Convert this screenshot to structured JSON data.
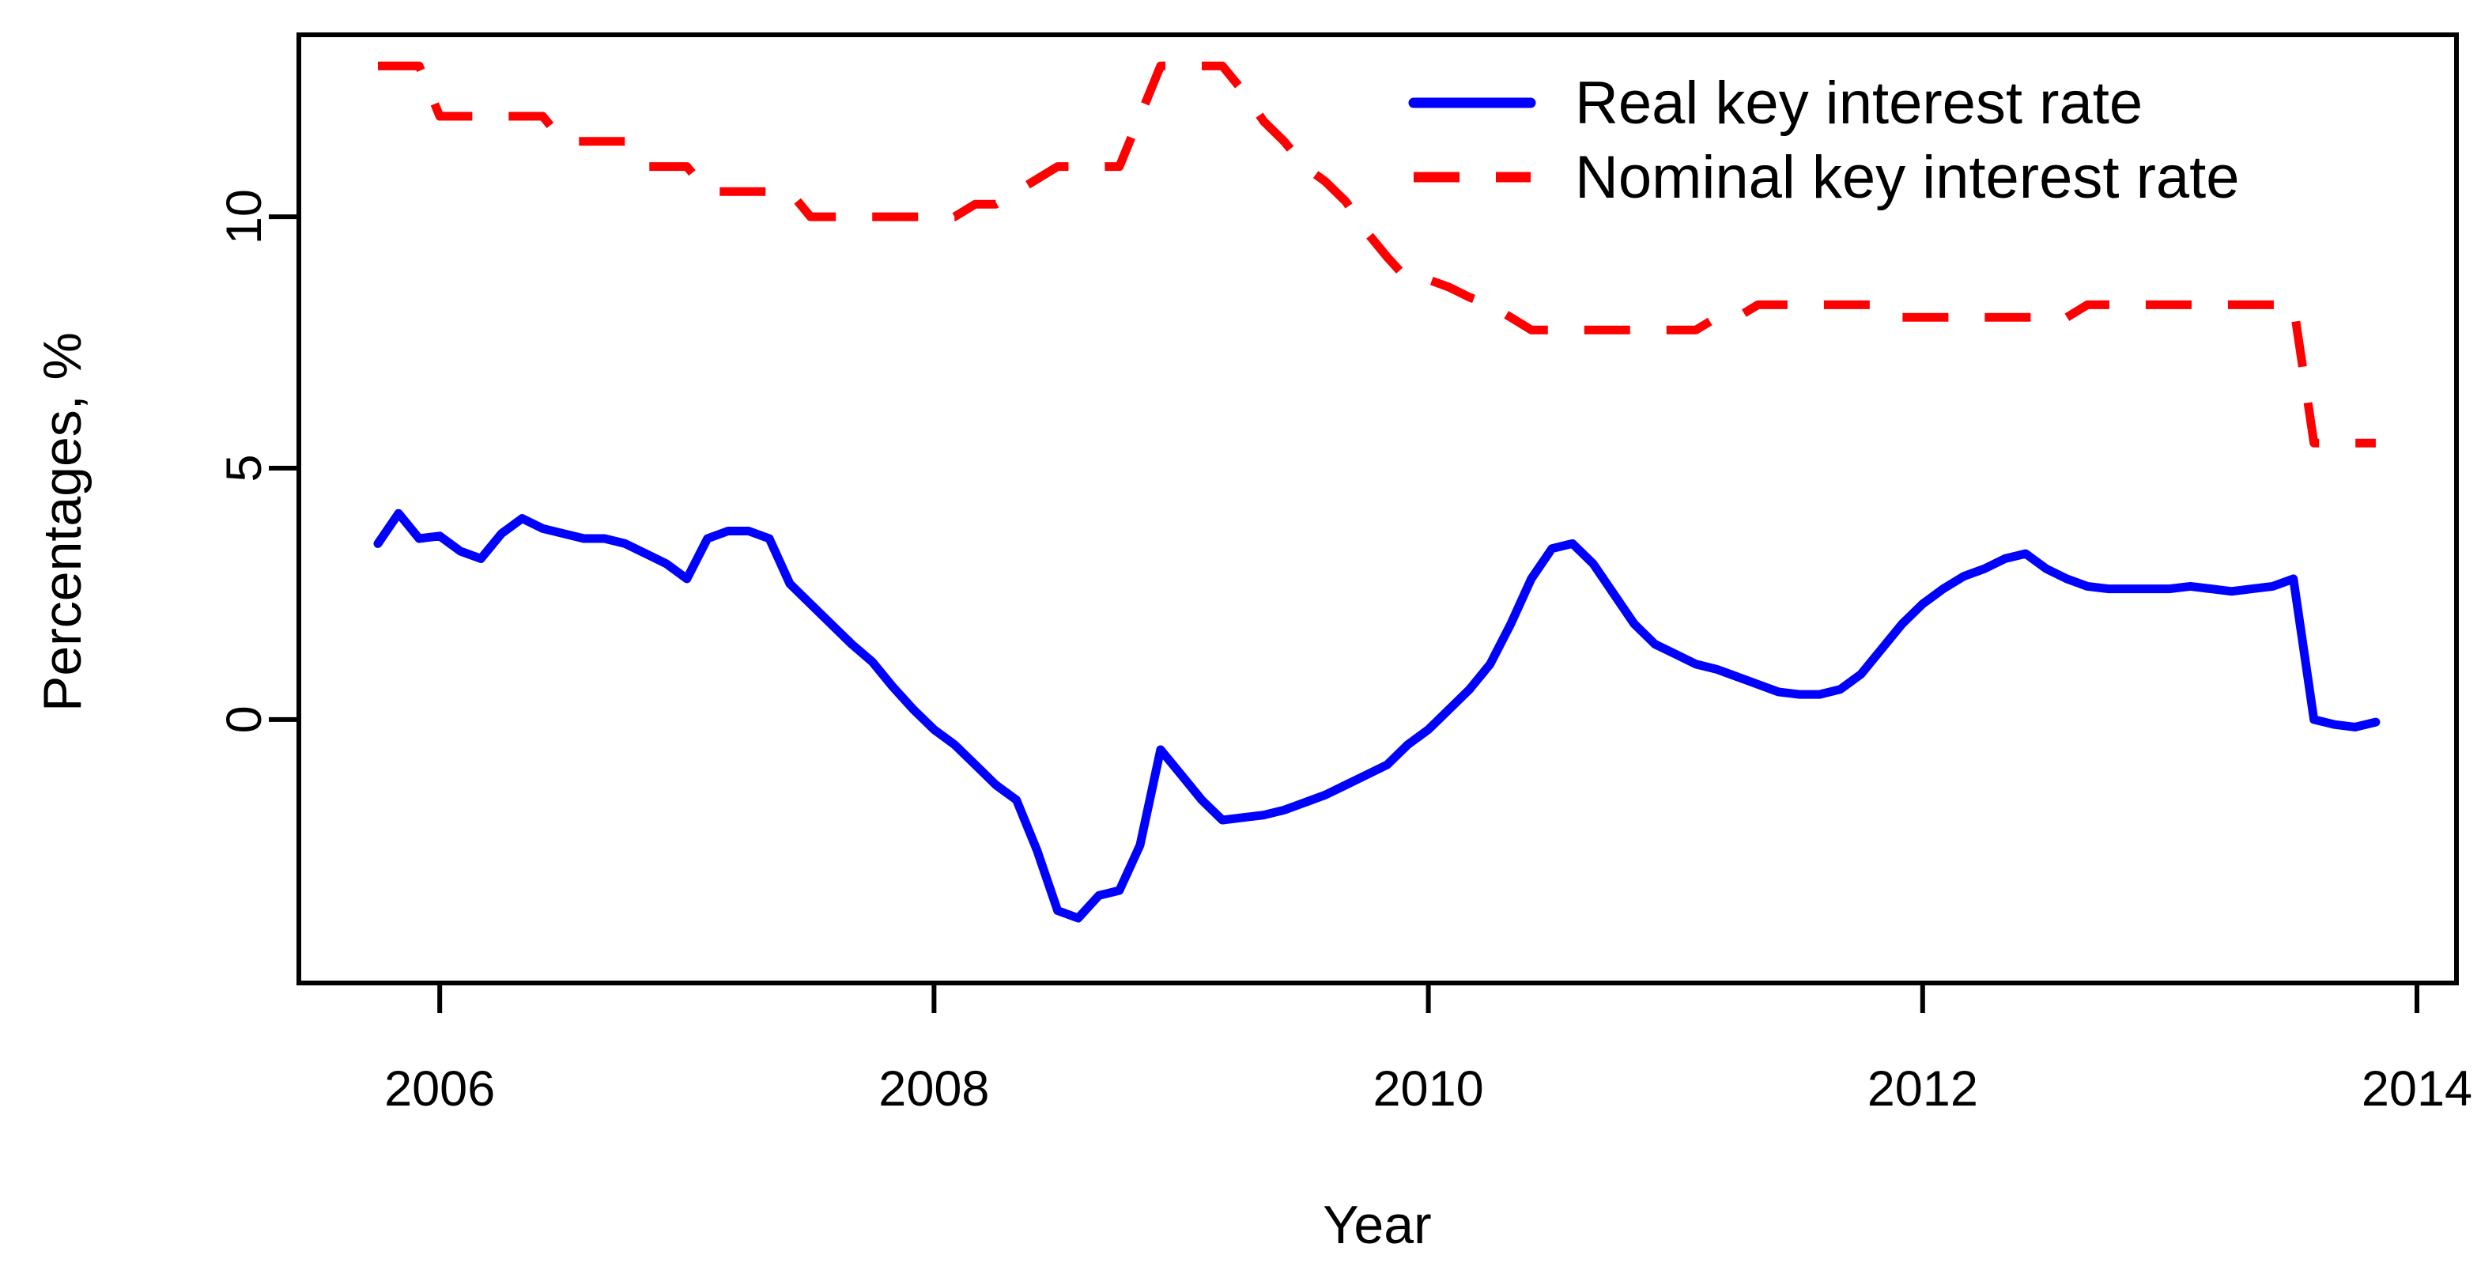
{
  "figure": {
    "background_color": "#ffffff",
    "axis_color": "#000000",
    "blue_color": "#0000ff",
    "red_color": "#ff0000"
  },
  "chart_data": {
    "type": "line",
    "title": "",
    "xlabel": "Year",
    "ylabel": "Percentages, %",
    "grid": false,
    "legend_position": "top-right",
    "xlim": [
      2005.43,
      2014.16
    ],
    "ylim": [
      -5.24,
      13.62
    ],
    "x_ticks": [
      2006,
      2008,
      2010,
      2012,
      2014
    ],
    "x_tick_labels": [
      "2006",
      "2008",
      "2010",
      "2012",
      "2014"
    ],
    "y_ticks": [
      0,
      5,
      10
    ],
    "y_tick_labels": [
      "0",
      "5",
      "10"
    ],
    "x_months": [
      "2005-10",
      "2005-11",
      "2005-12",
      "2006-01",
      "2006-02",
      "2006-03",
      "2006-04",
      "2006-05",
      "2006-06",
      "2006-07",
      "2006-08",
      "2006-09",
      "2006-10",
      "2006-11",
      "2006-12",
      "2007-01",
      "2007-02",
      "2007-03",
      "2007-04",
      "2007-05",
      "2007-06",
      "2007-07",
      "2007-08",
      "2007-09",
      "2007-10",
      "2007-11",
      "2007-12",
      "2008-01",
      "2008-02",
      "2008-03",
      "2008-04",
      "2008-05",
      "2008-06",
      "2008-07",
      "2008-08",
      "2008-09",
      "2008-10",
      "2008-11",
      "2008-12",
      "2009-01",
      "2009-02",
      "2009-03",
      "2009-04",
      "2009-05",
      "2009-06",
      "2009-07",
      "2009-08",
      "2009-09",
      "2009-10",
      "2009-11",
      "2009-12",
      "2010-01",
      "2010-02",
      "2010-03",
      "2010-04",
      "2010-05",
      "2010-06",
      "2010-07",
      "2010-08",
      "2010-09",
      "2010-10",
      "2010-11",
      "2010-12",
      "2011-01",
      "2011-02",
      "2011-03",
      "2011-04",
      "2011-05",
      "2011-06",
      "2011-07",
      "2011-08",
      "2011-09",
      "2011-10",
      "2011-11",
      "2011-12",
      "2012-01",
      "2012-02",
      "2012-03",
      "2012-04",
      "2012-05",
      "2012-06",
      "2012-07",
      "2012-08",
      "2012-09",
      "2012-10",
      "2012-11",
      "2012-12",
      "2013-01",
      "2013-02",
      "2013-03",
      "2013-04",
      "2013-05",
      "2013-06",
      "2013-07",
      "2013-08",
      "2013-09",
      "2013-10",
      "2013-11"
    ],
    "series": [
      {
        "name": "Real key interest rate",
        "color": "#0000ff",
        "line": "solid",
        "values": [
          3.5,
          4.1,
          3.6,
          3.65,
          3.35,
          3.2,
          3.7,
          4.0,
          3.8,
          3.7,
          3.6,
          3.6,
          3.5,
          3.3,
          3.1,
          2.8,
          3.6,
          3.75,
          3.75,
          3.6,
          2.7,
          2.3,
          1.9,
          1.5,
          1.15,
          0.65,
          0.2,
          -0.2,
          -0.5,
          -0.9,
          -1.3,
          -1.6,
          -2.6,
          -3.8,
          -3.95,
          -3.5,
          -3.4,
          -2.5,
          -0.6,
          -1.1,
          -1.6,
          -2.0,
          -1.95,
          -1.9,
          -1.8,
          -1.65,
          -1.5,
          -1.3,
          -1.1,
          -0.9,
          -0.5,
          -0.2,
          0.2,
          0.6,
          1.1,
          1.9,
          2.8,
          3.4,
          3.5,
          3.1,
          2.5,
          1.9,
          1.5,
          1.3,
          1.1,
          1.0,
          0.85,
          0.7,
          0.55,
          0.5,
          0.5,
          0.6,
          0.9,
          1.4,
          1.9,
          2.3,
          2.6,
          2.85,
          3.0,
          3.2,
          3.3,
          3.0,
          2.8,
          2.65,
          2.6,
          2.6,
          2.6,
          2.6,
          2.65,
          2.6,
          2.55,
          2.6,
          2.65,
          2.8,
          0.0,
          -0.1,
          -0.15,
          -0.05
        ]
      },
      {
        "name": "Nominal key interest rate",
        "color": "#ff0000",
        "line": "dashed",
        "values": [
          13,
          13,
          13,
          12,
          12,
          12,
          12,
          12,
          12,
          11.5,
          11.5,
          11.5,
          11.5,
          11,
          11,
          11,
          10.5,
          10.5,
          10.5,
          10.5,
          10.5,
          10,
          10,
          10,
          10,
          10,
          10,
          10,
          10,
          10.25,
          10.25,
          10.5,
          10.75,
          11,
          11,
          11,
          11,
          12,
          13,
          13,
          13,
          13,
          12.5,
          11.9,
          11.5,
          11.0,
          10.7,
          10.3,
          9.7,
          9.2,
          8.75,
          8.75,
          8.6,
          8.4,
          8.25,
          8.0,
          7.75,
          7.75,
          7.75,
          7.75,
          7.75,
          7.75,
          7.75,
          7.75,
          7.75,
          8.0,
          8.0,
          8.25,
          8.25,
          8.25,
          8.25,
          8.25,
          8.25,
          8.25,
          8.0,
          8.0,
          8.0,
          8.0,
          8.0,
          8.0,
          8.0,
          8.0,
          8.0,
          8.25,
          8.25,
          8.25,
          8.25,
          8.25,
          8.25,
          8.25,
          8.25,
          8.25,
          8.25,
          8.25,
          5.5,
          5.5,
          5.5,
          5.5
        ]
      }
    ],
    "legend": [
      {
        "label": "Real key interest rate",
        "color": "#0000ff",
        "style": "solid"
      },
      {
        "label": "Nominal key interest rate",
        "color": "#ff0000",
        "style": "dashed"
      }
    ]
  }
}
